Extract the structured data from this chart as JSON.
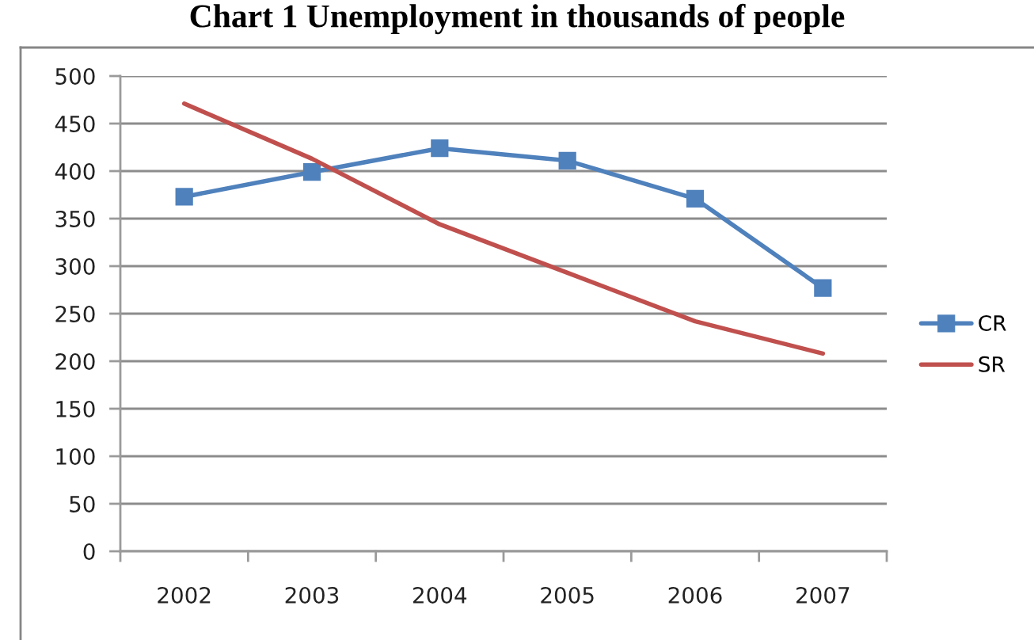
{
  "chart_data": {
    "type": "line",
    "title": "Chart 1 Unemployment in thousands of people",
    "categories": [
      "2002",
      "2003",
      "2004",
      "2005",
      "2006",
      "2007"
    ],
    "series": [
      {
        "name": "CR",
        "color": "#4f81bd",
        "marker": "square",
        "values": [
          373,
          399,
          424,
          411,
          371,
          277
        ]
      },
      {
        "name": "SR",
        "color": "#c0504d",
        "marker": "none",
        "values": [
          471,
          413,
          344,
          293,
          242,
          208
        ]
      }
    ],
    "ylim": [
      0,
      500
    ],
    "yticks": [
      0,
      50,
      100,
      150,
      200,
      250,
      300,
      350,
      400,
      450,
      500
    ],
    "grid": "y",
    "legend": "right",
    "line_style": "solid"
  }
}
